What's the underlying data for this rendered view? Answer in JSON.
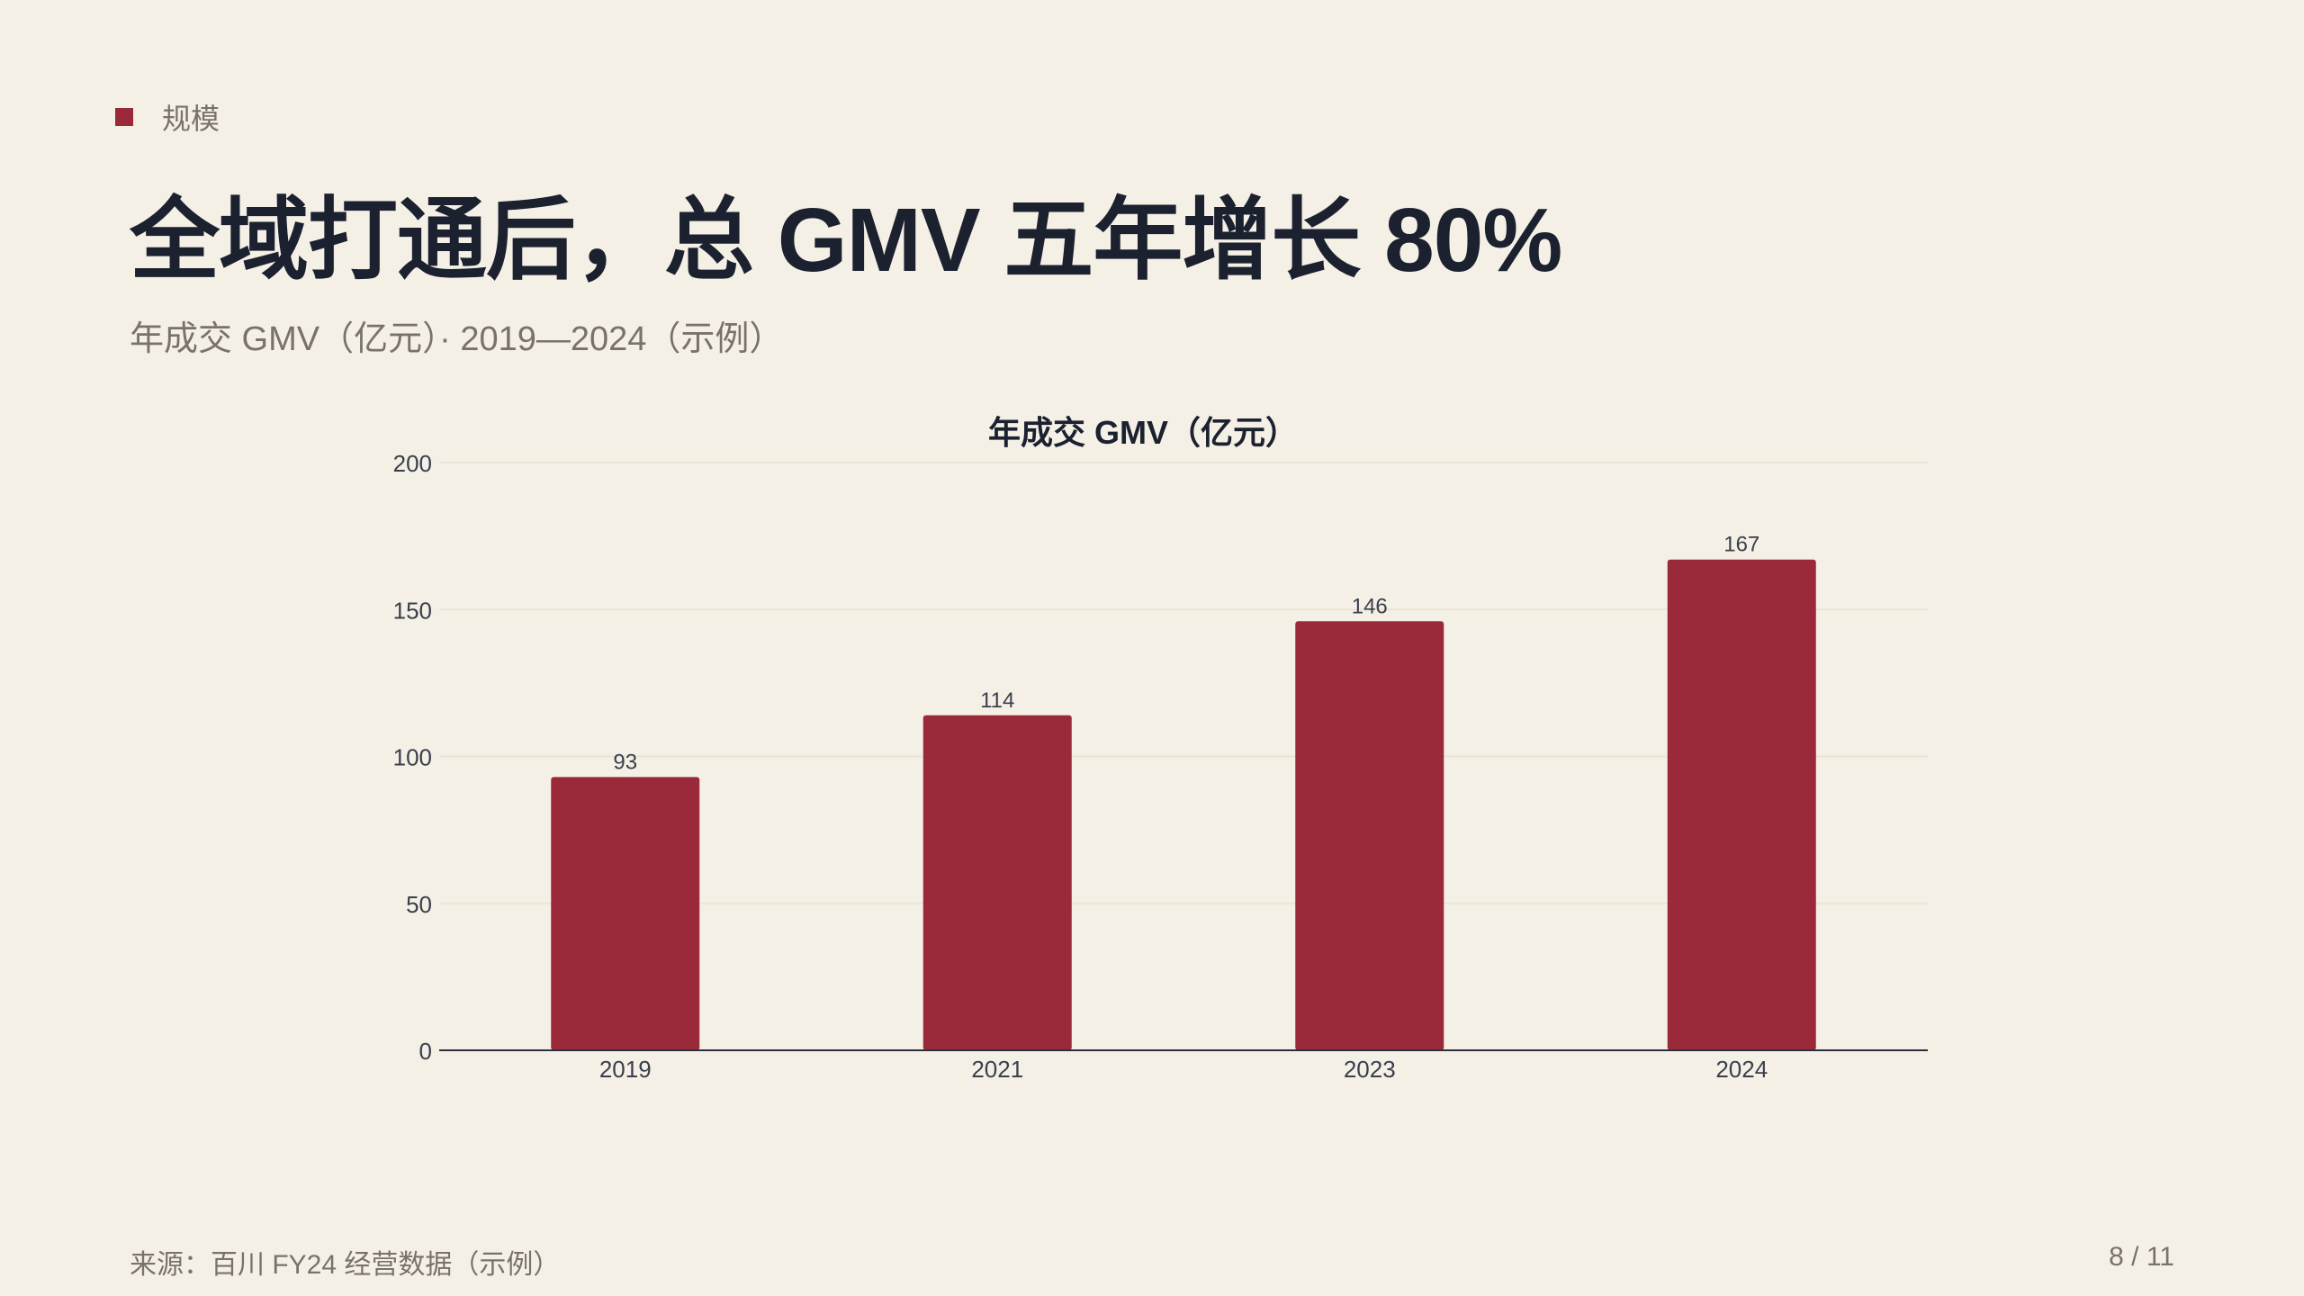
{
  "eyebrow": "规模",
  "title": "全域打通后，总 GMV 五年增长 80%",
  "subtitle": "年成交 GMV（亿元）· 2019—2024（示例）",
  "footer": {
    "source": "来源：百川 FY24 经营数据（示例）",
    "page": "8 / 11"
  },
  "colors": {
    "accent": "#9a2a3a",
    "background": "#f5f0e6",
    "title": "#1c2130",
    "muted": "#7a7268"
  },
  "chart_data": {
    "type": "bar",
    "title": "年成交 GMV（亿元）",
    "categories": [
      "2019",
      "2021",
      "2023",
      "2024"
    ],
    "values": [
      93,
      114,
      146,
      167
    ],
    "data_labels": [
      "93",
      "114",
      "146",
      "167"
    ],
    "xlabel": "",
    "ylabel": "",
    "ylim": [
      0,
      200
    ],
    "yticks": [
      0,
      50,
      100,
      150,
      200
    ],
    "ytick_labels": [
      "0",
      "50",
      "100",
      "150",
      "200"
    ],
    "grid": true,
    "legend": "none"
  }
}
